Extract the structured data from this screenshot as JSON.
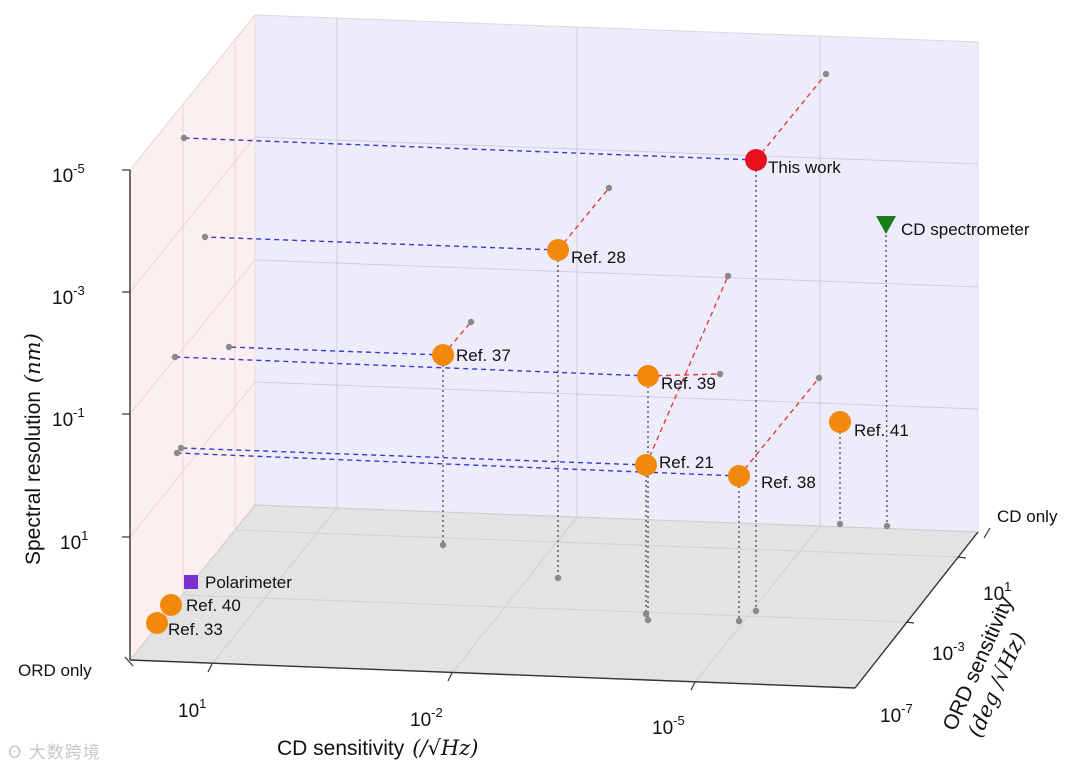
{
  "chart_data": {
    "type": "scatter3d",
    "axes": {
      "x": {
        "label": "CD sensitivity",
        "unit": "(/√Hz)",
        "ticks": [
          "10^1",
          "10^-2",
          "10^-5"
        ],
        "scale": "log",
        "range": [
          100,
          1e-06
        ]
      },
      "y": {
        "label": "ORD sensitivity",
        "unit": "(deg /√Hz)",
        "ticks": [
          "CD only",
          "10^1",
          "10^-3",
          "10^-7"
        ],
        "scale": "log"
      },
      "z": {
        "label": "Spectral resolution",
        "unit": "(nm)",
        "ticks": [
          "10^-5",
          "10^-3",
          "10^-1",
          "10^1"
        ],
        "scale": "log",
        "note": "axis reversed (finer resolution higher)"
      }
    },
    "floor_labels": {
      "ord_only": "ORD only",
      "cd_only": "CD only"
    },
    "points": [
      {
        "name": "This work",
        "color": "#e8101e",
        "marker": "circle",
        "cd": "~1e-5",
        "ord": "~1e-1",
        "res": "~1e-5 nm"
      },
      {
        "name": "Ref. 28",
        "color": "#f2880c",
        "marker": "circle",
        "cd": "~1e-3",
        "ord": "~1e-1",
        "res": "~1e-4 nm"
      },
      {
        "name": "Ref. 37",
        "color": "#f2880c",
        "marker": "circle",
        "cd": "~1e-2",
        "ord": "~1e1",
        "res": "~1e-2 nm"
      },
      {
        "name": "Ref. 39",
        "color": "#f2880c",
        "marker": "circle",
        "cd": "~1e-4",
        "ord": "~1e-5",
        "res": "~1e-2 nm"
      },
      {
        "name": "Ref. 21",
        "color": "#f2880c",
        "marker": "circle",
        "cd": "~1e-4",
        "ord": "~1e-5",
        "res": "~1 nm"
      },
      {
        "name": "Ref. 38",
        "color": "#f2880c",
        "marker": "circle",
        "cd": "~1e-5",
        "ord": "~1e-5",
        "res": "~1 nm"
      },
      {
        "name": "Ref. 41",
        "color": "#f2880c",
        "marker": "circle",
        "cd": "~1e-6",
        "ord": "CD only",
        "res": "~1e-1 nm"
      },
      {
        "name": "CD spectrometer",
        "color": "#1a7d1a",
        "marker": "triangle-down",
        "cd": "~1e-6",
        "ord": "CD only",
        "res": "~1e-4 nm"
      },
      {
        "name": "Polarimeter",
        "color": "#7b2fd0",
        "marker": "square",
        "cd": "ORD only",
        "ord": "~1e-3",
        "res": "~1e1 nm"
      },
      {
        "name": "Ref. 40",
        "color": "#f2880c",
        "marker": "circle",
        "cd": "ORD only",
        "ord": "~1e-5",
        "res": "~1e1 nm"
      },
      {
        "name": "Ref. 33",
        "color": "#f2880c",
        "marker": "circle",
        "cd": "ORD only",
        "ord": "~1e-6",
        "res": "~1e1 nm"
      }
    ]
  },
  "watermark": "大数跨境"
}
